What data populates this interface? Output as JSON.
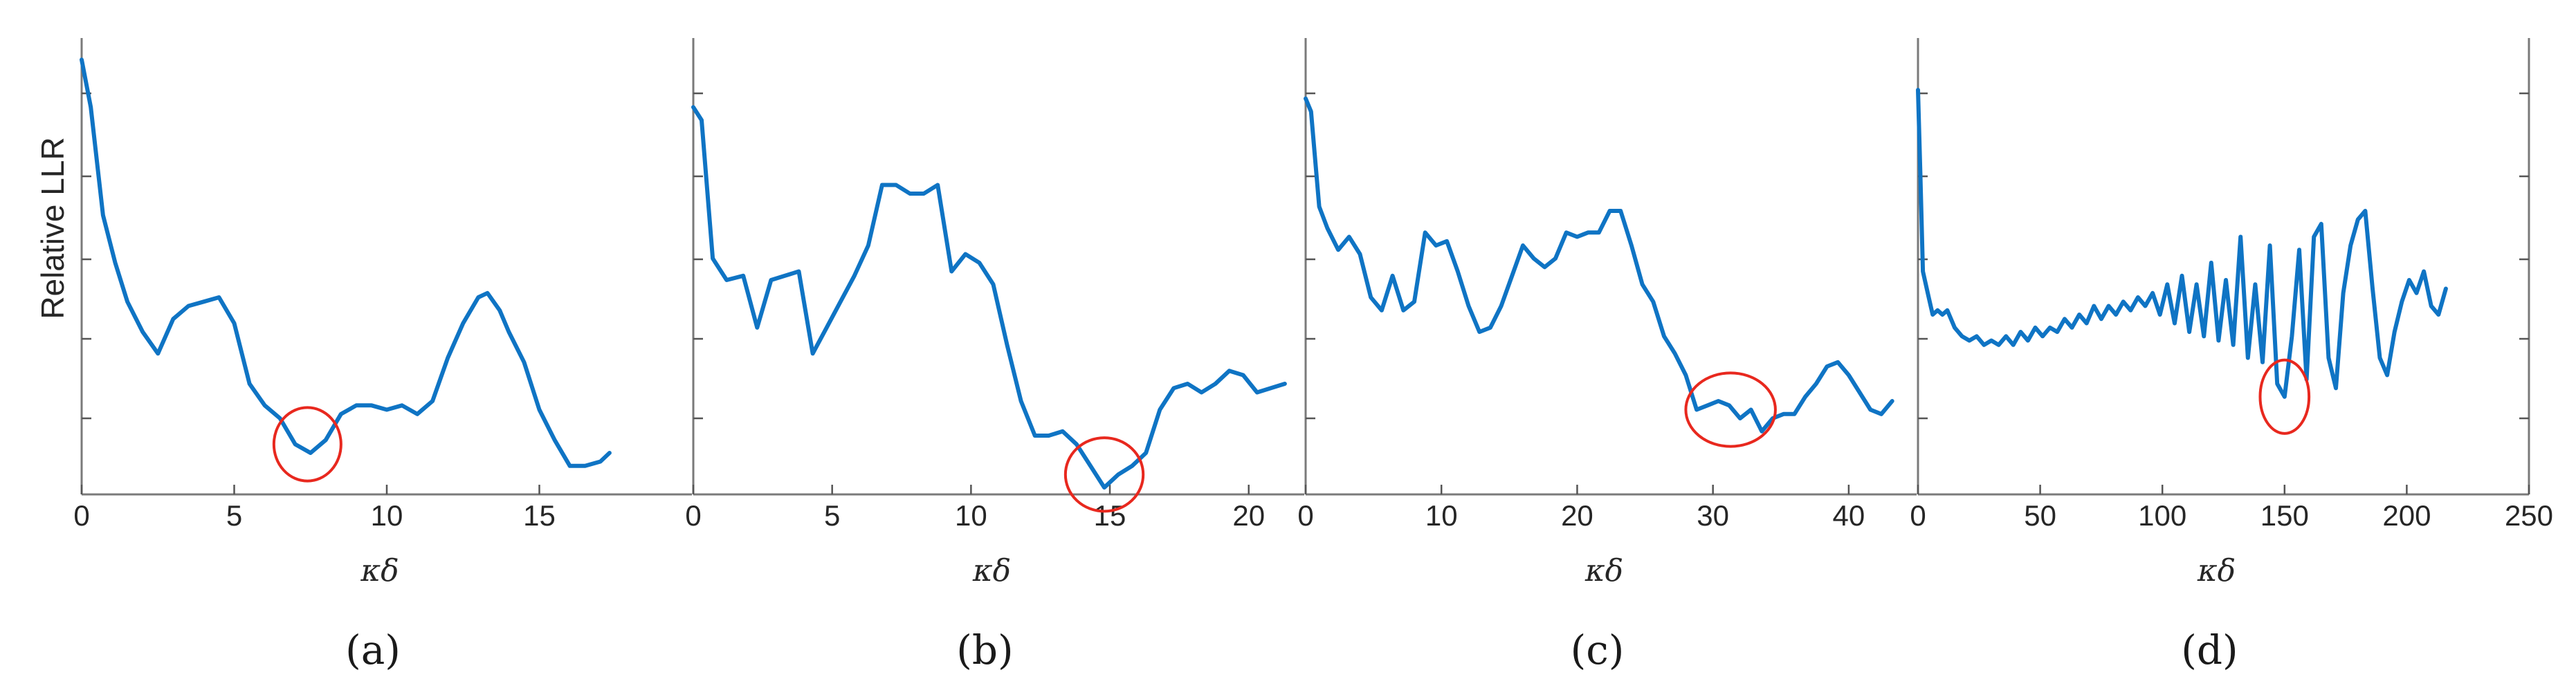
{
  "figure": {
    "colors": {
      "curve": "#0f74c4",
      "marker": "#e8281e",
      "axes": "#7a7a7a"
    },
    "ylabel": "Relative LLR"
  },
  "chart_data": [
    {
      "type": "line",
      "caption": "(a)",
      "xlabel": "κδ",
      "ylabel": "Relative LLR",
      "xlim": [
        0,
        20
      ],
      "ylim": [
        0,
        1
      ],
      "xticks": [
        "0",
        "5",
        "10",
        "15"
      ],
      "yticks_count": 5,
      "marker": {
        "x": 7.4,
        "y": 0.1,
        "r_x": 1.1,
        "r_y": 0.085
      },
      "series": [
        {
          "x": [
            0,
            0.3,
            0.7,
            1.1,
            1.5,
            2.0,
            2.5,
            3.0,
            3.5,
            4.0,
            4.5,
            5.0,
            5.5,
            6.0,
            6.5,
            7.0,
            7.5,
            8.0,
            8.5,
            9.0,
            9.5,
            10.0,
            10.5,
            11.0,
            11.5,
            12.0,
            12.5,
            13.0,
            13.3,
            13.7,
            14.0,
            14.5,
            15.0,
            15.5,
            16.0,
            16.5,
            17.0,
            17.3
          ],
          "y": [
            0.99,
            0.88,
            0.63,
            0.52,
            0.43,
            0.36,
            0.31,
            0.39,
            0.42,
            0.43,
            0.44,
            0.38,
            0.24,
            0.19,
            0.16,
            0.1,
            0.08,
            0.11,
            0.17,
            0.19,
            0.19,
            0.18,
            0.19,
            0.17,
            0.2,
            0.3,
            0.38,
            0.44,
            0.45,
            0.41,
            0.36,
            0.29,
            0.18,
            0.11,
            0.05,
            0.05,
            0.06,
            0.08
          ]
        }
      ]
    },
    {
      "type": "line",
      "caption": "(b)",
      "xlabel": "κδ",
      "ylabel": "",
      "xlim": [
        0,
        22
      ],
      "ylim": [
        0,
        1
      ],
      "xticks": [
        "0",
        "5",
        "10",
        "15",
        "20"
      ],
      "yticks_count": 5,
      "marker": {
        "x": 14.8,
        "y": 0.03,
        "r_x": 1.4,
        "r_y": 0.085
      },
      "series": [
        {
          "x": [
            0,
            0.3,
            0.7,
            1.2,
            1.8,
            2.3,
            2.8,
            3.3,
            3.8,
            4.3,
            4.8,
            5.3,
            5.8,
            6.3,
            6.8,
            7.3,
            7.8,
            8.3,
            8.8,
            9.3,
            9.8,
            10.3,
            10.8,
            11.3,
            11.8,
            12.3,
            12.8,
            13.3,
            13.8,
            14.3,
            14.8,
            15.3,
            15.8,
            16.3,
            16.8,
            17.3,
            17.8,
            18.3,
            18.8,
            19.3,
            19.8,
            20.3,
            20.8,
            21.3
          ],
          "y": [
            0.88,
            0.85,
            0.53,
            0.48,
            0.49,
            0.37,
            0.48,
            0.49,
            0.5,
            0.31,
            0.37,
            0.43,
            0.49,
            0.56,
            0.7,
            0.7,
            0.68,
            0.68,
            0.7,
            0.5,
            0.54,
            0.52,
            0.47,
            0.33,
            0.2,
            0.12,
            0.12,
            0.13,
            0.1,
            0.05,
            0.0,
            0.03,
            0.05,
            0.08,
            0.18,
            0.23,
            0.24,
            0.22,
            0.24,
            0.27,
            0.26,
            0.22,
            0.23,
            0.24
          ]
        }
      ]
    },
    {
      "type": "line",
      "caption": "(c)",
      "xlabel": "κδ",
      "ylabel": "",
      "xlim": [
        0,
        45
      ],
      "ylim": [
        0,
        1
      ],
      "xticks": [
        "0",
        "10",
        "20",
        "30",
        "40"
      ],
      "yticks_count": 5,
      "marker": {
        "x": 31.3,
        "y": 0.18,
        "r_x": 3.3,
        "r_y": 0.085
      },
      "series": [
        {
          "x": [
            0,
            0.4,
            1.0,
            1.6,
            2.4,
            3.2,
            4.0,
            4.8,
            5.6,
            6.4,
            7.2,
            8.0,
            8.8,
            9.6,
            10.4,
            11.2,
            12.0,
            12.8,
            13.6,
            14.4,
            15.2,
            16.0,
            16.8,
            17.6,
            18.4,
            19.2,
            20.0,
            20.8,
            21.6,
            22.4,
            23.2,
            24.0,
            24.8,
            25.6,
            26.4,
            27.2,
            28.0,
            28.8,
            29.6,
            30.4,
            31.2,
            32.0,
            32.8,
            33.6,
            34.4,
            35.2,
            36.0,
            36.8,
            37.6,
            38.4,
            39.2,
            40.0,
            40.8,
            41.6,
            42.4,
            43.2
          ],
          "y": [
            0.9,
            0.87,
            0.65,
            0.6,
            0.55,
            0.58,
            0.54,
            0.44,
            0.41,
            0.49,
            0.41,
            0.43,
            0.59,
            0.56,
            0.57,
            0.5,
            0.42,
            0.36,
            0.37,
            0.42,
            0.49,
            0.56,
            0.53,
            0.51,
            0.53,
            0.59,
            0.58,
            0.59,
            0.59,
            0.64,
            0.64,
            0.56,
            0.47,
            0.43,
            0.35,
            0.31,
            0.26,
            0.18,
            0.19,
            0.2,
            0.19,
            0.16,
            0.18,
            0.13,
            0.16,
            0.17,
            0.17,
            0.21,
            0.24,
            0.28,
            0.29,
            0.26,
            0.22,
            0.18,
            0.17,
            0.2
          ]
        }
      ]
    },
    {
      "type": "line",
      "caption": "(d)",
      "xlabel": "κδ",
      "ylabel": "",
      "xlim": [
        0,
        250
      ],
      "ylim": [
        0,
        1
      ],
      "xticks": [
        "0",
        "50",
        "100",
        "150",
        "200",
        "250"
      ],
      "yticks_count": 5,
      "marker": {
        "x": 150,
        "y": 0.21,
        "r_x": 10,
        "r_y": 0.085
      },
      "series": [
        {
          "x": [
            0,
            1,
            2,
            4,
            6,
            8,
            10,
            12,
            15,
            18,
            21,
            24,
            27,
            30,
            33,
            36,
            39,
            42,
            45,
            48,
            51,
            54,
            57,
            60,
            63,
            66,
            69,
            72,
            75,
            78,
            81,
            84,
            87,
            90,
            93,
            96,
            99,
            102,
            105,
            108,
            111,
            114,
            117,
            120,
            123,
            126,
            129,
            132,
            135,
            138,
            141,
            144,
            147,
            150,
            153,
            156,
            159,
            162,
            165,
            168,
            171,
            174,
            177,
            180,
            183,
            186,
            189,
            192,
            195,
            198,
            201,
            204,
            207,
            210,
            213,
            216
          ],
          "y": [
            0.92,
            0.72,
            0.5,
            0.45,
            0.4,
            0.41,
            0.4,
            0.41,
            0.37,
            0.35,
            0.34,
            0.35,
            0.33,
            0.34,
            0.33,
            0.35,
            0.33,
            0.36,
            0.34,
            0.37,
            0.35,
            0.37,
            0.36,
            0.39,
            0.37,
            0.4,
            0.38,
            0.42,
            0.39,
            0.42,
            0.4,
            0.43,
            0.41,
            0.44,
            0.42,
            0.45,
            0.4,
            0.47,
            0.38,
            0.49,
            0.36,
            0.47,
            0.35,
            0.52,
            0.34,
            0.48,
            0.33,
            0.58,
            0.3,
            0.47,
            0.29,
            0.56,
            0.24,
            0.21,
            0.35,
            0.55,
            0.25,
            0.58,
            0.61,
            0.3,
            0.23,
            0.45,
            0.56,
            0.62,
            0.64,
            0.46,
            0.3,
            0.26,
            0.36,
            0.43,
            0.48,
            0.45,
            0.5,
            0.42,
            0.4,
            0.46
          ]
        }
      ]
    }
  ]
}
